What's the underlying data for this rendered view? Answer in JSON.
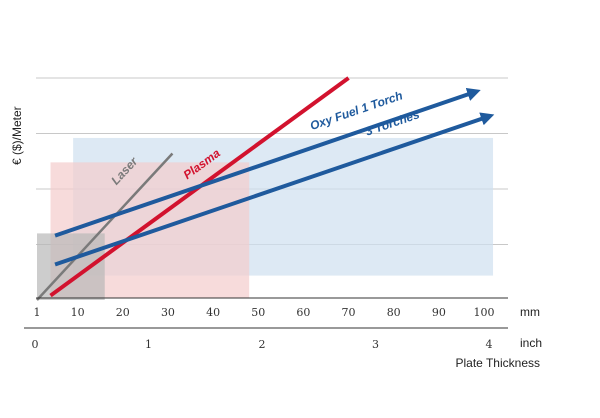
{
  "chart_data": {
    "type": "line",
    "title": "",
    "ylabel": "€ ($)/Meter",
    "xlabel": "Plate Thickness",
    "x_axis_mm": {
      "unit": "mm",
      "ticks": [
        1,
        10,
        20,
        30,
        40,
        50,
        60,
        70,
        80,
        90,
        100
      ],
      "tick_labels": [
        "1",
        "10",
        "20",
        "30",
        "40",
        "50",
        "60",
        "70",
        "80",
        "90",
        "100"
      ],
      "range": [
        1,
        104
      ]
    },
    "x_axis_inch": {
      "unit": "inch",
      "ticks": [
        0,
        1,
        2,
        3,
        4
      ],
      "tick_labels": [
        "0",
        "1",
        "2",
        "3",
        "4"
      ]
    },
    "y_axis": {
      "tick_labels_shown": false,
      "gridlines": 4,
      "range": [
        0,
        100
      ]
    },
    "grid": true,
    "ranges": [
      {
        "name": "Laser",
        "x_range_mm": [
          1,
          16
        ],
        "y_range": [
          0,
          30
        ],
        "color": "#b8b8b8"
      },
      {
        "name": "Plasma",
        "x_range_mm": [
          4,
          48
        ],
        "y_range": [
          1,
          62
        ],
        "color": "#f4cccc"
      },
      {
        "name": "Oxy Fuel",
        "x_range_mm": [
          9,
          102
        ],
        "y_range": [
          11,
          73
        ],
        "color": "#cfe0ef"
      }
    ],
    "series": [
      {
        "name": "Laser",
        "x": [
          1,
          31
        ],
        "y": [
          0,
          66
        ],
        "color": "#7a7a7a"
      },
      {
        "name": "Plasma",
        "x": [
          4,
          70
        ],
        "y": [
          2,
          100
        ],
        "color": "#d2122e"
      },
      {
        "name": "Oxy Fuel 1 Torch",
        "x": [
          5,
          97
        ],
        "y": [
          29,
          93
        ],
        "color": "#1f5a9d",
        "arrow": true
      },
      {
        "name": "3 Torches",
        "x": [
          5,
          100
        ],
        "y": [
          16,
          82
        ],
        "color": "#1f5a9d",
        "arrow": true
      }
    ],
    "legend": "inline labels on lines"
  }
}
